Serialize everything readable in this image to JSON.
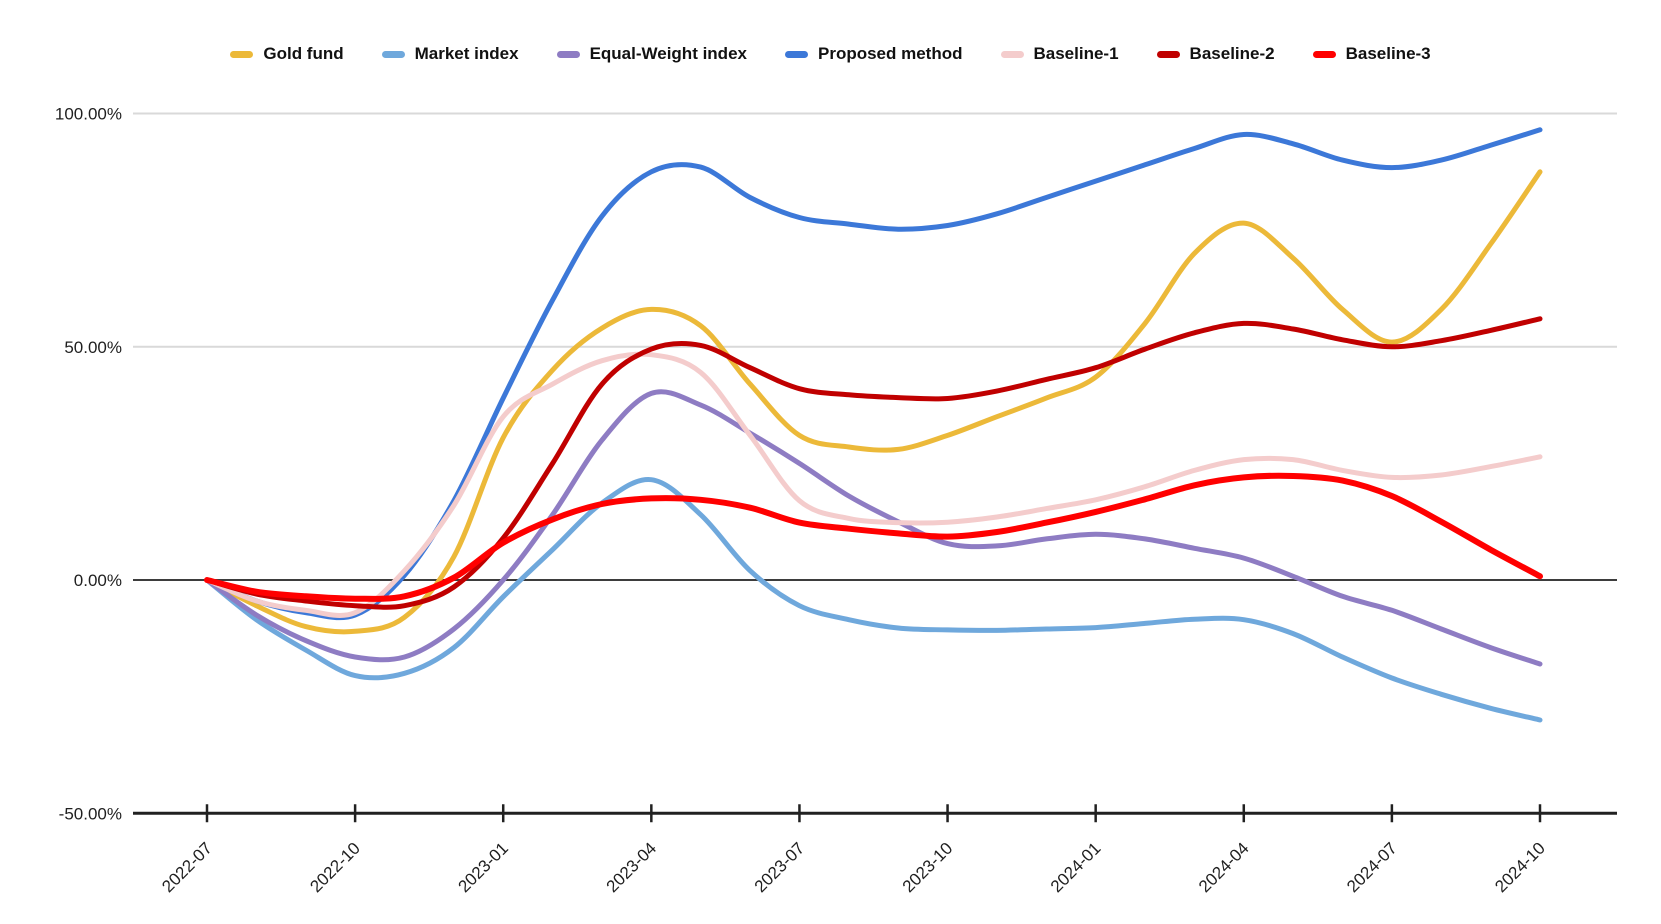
{
  "legend": {
    "items": [
      {
        "label": "Gold fund",
        "color": "#ECB939"
      },
      {
        "label": "Market index",
        "color": "#6FA8DC"
      },
      {
        "label": "Equal-Weight index",
        "color": "#8E7CC3"
      },
      {
        "label": "Proposed method",
        "color": "#3C78D8"
      },
      {
        "label": "Baseline-1",
        "color": "#F4CCCC"
      },
      {
        "label": "Baseline-2",
        "color": "#C00000"
      },
      {
        "label": "Baseline-3",
        "color": "#FF0000"
      }
    ]
  },
  "chart_data": {
    "type": "line",
    "title": "",
    "xlabel": "",
    "ylabel": "",
    "ylim": [
      -50,
      100
    ],
    "grid": "horizontal",
    "legend_position": "top",
    "grid_color": "#D9D9D9",
    "zero_line_color": "#3d3d3d",
    "axis_color": "#212121",
    "label_color": "#1f1f1f",
    "y_ticks": [
      {
        "label": "100.00%",
        "value": 100
      },
      {
        "label": "50.00%",
        "value": 50
      },
      {
        "label": "0.00%",
        "value": 0
      },
      {
        "label": "-50.00%",
        "value": -50
      }
    ],
    "x_tick_labels": [
      "2022-07",
      "2022-10",
      "2023-01",
      "2023-04",
      "2023-07",
      "2023-10",
      "2024-01",
      "2024-04",
      "2024-07",
      "2024-10"
    ],
    "months": [
      "2022-07",
      "2022-08",
      "2022-09",
      "2022-10",
      "2022-11",
      "2022-12",
      "2023-01",
      "2023-02",
      "2023-03",
      "2023-04",
      "2023-05",
      "2023-06",
      "2023-07",
      "2023-08",
      "2023-09",
      "2023-10",
      "2023-11",
      "2023-12",
      "2024-01",
      "2024-02",
      "2024-03",
      "2024-04",
      "2024-05",
      "2024-06",
      "2024-07",
      "2024-08",
      "2024-09",
      "2024-10"
    ],
    "series": [
      {
        "name": "Gold fund",
        "color": "#ECB939",
        "values": [
          0,
          -5.5,
          -10,
          -11,
          -8,
          5,
          30.5,
          45,
          54,
          58,
          54.5,
          42,
          31,
          28.5,
          28,
          31,
          35,
          39,
          43.5,
          55,
          70,
          76.5,
          69,
          58,
          51,
          58,
          72,
          87.5
        ]
      },
      {
        "name": "Market index",
        "color": "#6FA8DC",
        "values": [
          0,
          -8.5,
          -15,
          -20.5,
          -20,
          -14.5,
          -3.6,
          6.5,
          16.5,
          21.5,
          14,
          2,
          -5.5,
          -8.5,
          -10.3,
          -10.7,
          -10.8,
          -10.5,
          -10.2,
          -9.3,
          -8.4,
          -8.5,
          -11.5,
          -16.5,
          -21,
          -24.5,
          -27.5,
          -30
        ]
      },
      {
        "name": "Equal-Weight index",
        "color": "#8E7CC3",
        "values": [
          0,
          -7.5,
          -13,
          -16.5,
          -16.5,
          -10.5,
          0,
          14,
          30,
          40,
          37.5,
          31.5,
          25,
          18,
          12.5,
          7.8,
          7.3,
          8.8,
          9.8,
          8.8,
          6.8,
          4.7,
          0.8,
          -3.5,
          -6.5,
          -10.5,
          -14.5,
          -18
        ]
      },
      {
        "name": "Proposed method",
        "color": "#3C78D8",
        "values": [
          0,
          -4.5,
          -7,
          -7.5,
          1,
          17,
          39,
          60,
          78,
          87.5,
          88.5,
          82,
          77.7,
          76.3,
          75.2,
          76,
          78.5,
          82,
          85.5,
          89,
          92.5,
          95.5,
          93.5,
          90,
          88.4,
          90,
          93.2,
          96.5
        ]
      },
      {
        "name": "Baseline-1",
        "color": "#F4CCCC",
        "values": [
          0,
          -4.5,
          -6.5,
          -7,
          2,
          16,
          35,
          42,
          47,
          48.3,
          44.5,
          31,
          17,
          13.2,
          12.3,
          12.4,
          13.5,
          15.3,
          17.2,
          20,
          23.5,
          25.8,
          25.8,
          23.5,
          22,
          22.5,
          24.3,
          26.4
        ]
      },
      {
        "name": "Baseline-2",
        "color": "#C00000",
        "values": [
          0,
          -3,
          -4.5,
          -5.5,
          -5.5,
          -1.5,
          9,
          25,
          42,
          49.5,
          50.3,
          45.5,
          41,
          39.7,
          39.1,
          38.9,
          40.5,
          43,
          45.5,
          49.5,
          53,
          55,
          53.8,
          51.5,
          50,
          51.3,
          53.5,
          56
        ]
      },
      {
        "name": "Baseline-3",
        "color": "#FF0000",
        "values": [
          0,
          -2.5,
          -3.5,
          -4,
          -3.5,
          0.5,
          8,
          13,
          16.3,
          17.5,
          17.2,
          15.5,
          12.3,
          11,
          10,
          9.3,
          10.3,
          12.3,
          14.6,
          17.3,
          20.3,
          22,
          22.3,
          21.3,
          18,
          12.5,
          6.5,
          0.8
        ]
      }
    ]
  }
}
